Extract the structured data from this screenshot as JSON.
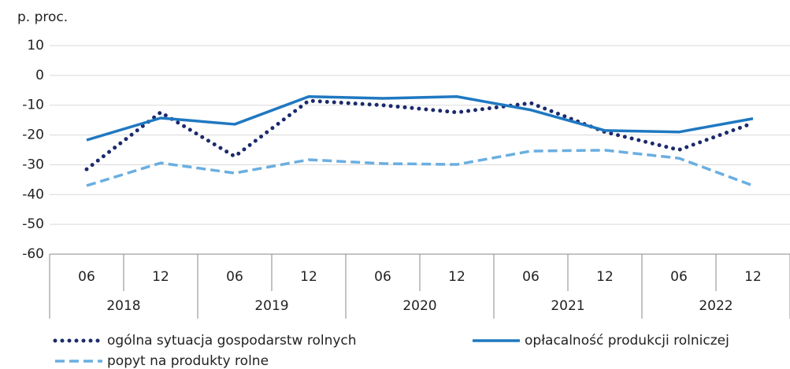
{
  "chart_data": {
    "type": "line",
    "y_label": "p. proc.",
    "categories": [
      "06",
      "12",
      "06",
      "12",
      "06",
      "12",
      "06",
      "12",
      "06",
      "12"
    ],
    "year_groups": [
      "2018",
      "2019",
      "2020",
      "2021",
      "2022"
    ],
    "series": [
      {
        "name": "ogólna sytuacja gospodarstw rolnych",
        "color": "#1b2a6b",
        "style": "dotted",
        "values": [
          -31.5,
          -12.4,
          -27.2,
          -8.5,
          -10,
          -12.4,
          -9.3,
          -19,
          -25,
          -16
        ]
      },
      {
        "name": "opłacalność produkcji rolniczej",
        "color": "#1f78c1",
        "style": "solid",
        "values": [
          -21.7,
          -14.3,
          -16.4,
          -7.1,
          -7.7,
          -7.1,
          -11.6,
          -18.5,
          -19,
          -14.5
        ]
      },
      {
        "name": "popyt na produkty rolne",
        "color": "#6aaee0",
        "style": "dashed",
        "values": [
          -37,
          -29.4,
          -32.8,
          -28.3,
          -29.6,
          -29.9,
          -25.4,
          -25.1,
          -27.8,
          -37
        ]
      }
    ],
    "ylim": [
      -60,
      10
    ],
    "yticks": [
      10,
      0,
      -10,
      -20,
      -30,
      -40,
      -50,
      -60
    ],
    "grid": true,
    "legend": "bottom"
  }
}
